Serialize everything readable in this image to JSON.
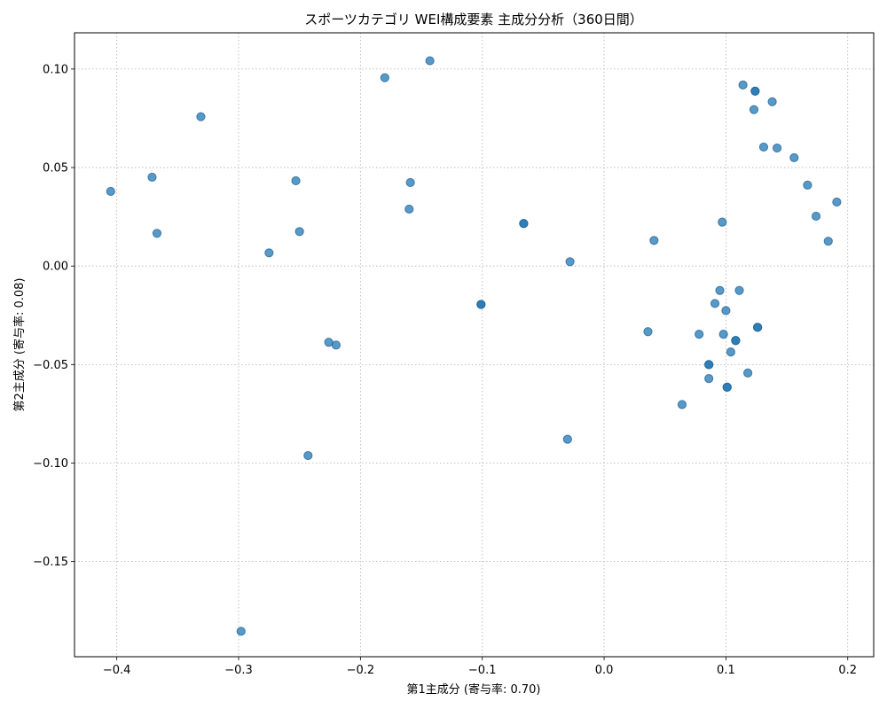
{
  "chart_data": {
    "type": "scatter",
    "title": "スポーツカテゴリ WEI構成要素 主成分分析（360日間）",
    "xlabel": "第1主成分 (寄与率: 0.70)",
    "ylabel": "第2主成分 (寄与率: 0.08)",
    "xlim": [
      -0.4347,
      0.2213
    ],
    "ylim": [
      -0.1983,
      0.1184
    ],
    "xticks": [
      -0.4,
      -0.3,
      -0.2,
      -0.1,
      0.0,
      0.1,
      0.2
    ],
    "xtick_labels": [
      "−0.4",
      "−0.3",
      "−0.2",
      "−0.1",
      "0.0",
      "0.1",
      "0.2"
    ],
    "yticks": [
      0.1,
      0.05,
      0.0,
      -0.05,
      -0.1,
      -0.15
    ],
    "ytick_labels": [
      "0.10",
      "0.05",
      "0.00",
      "−0.05",
      "−0.10",
      "−0.15"
    ],
    "grid": true,
    "marker_color": "#1f77b4",
    "marker_alpha": 0.75,
    "points": [
      {
        "x": -0.405,
        "y": 0.0379
      },
      {
        "x": -0.371,
        "y": 0.0451
      },
      {
        "x": -0.367,
        "y": 0.0166
      },
      {
        "x": -0.331,
        "y": 0.0758
      },
      {
        "x": -0.298,
        "y": -0.1854
      },
      {
        "x": -0.275,
        "y": 0.0067
      },
      {
        "x": -0.253,
        "y": 0.0433
      },
      {
        "x": -0.25,
        "y": 0.0175
      },
      {
        "x": -0.243,
        "y": -0.0962
      },
      {
        "x": -0.226,
        "y": -0.0387
      },
      {
        "x": -0.22,
        "y": -0.0401
      },
      {
        "x": -0.18,
        "y": 0.0956
      },
      {
        "x": -0.159,
        "y": 0.0424
      },
      {
        "x": -0.16,
        "y": 0.0289
      },
      {
        "x": -0.143,
        "y": 0.1042
      },
      {
        "x": -0.101,
        "y": -0.0195
      },
      {
        "x": -0.101,
        "y": -0.0195
      },
      {
        "x": -0.066,
        "y": 0.0216
      },
      {
        "x": -0.066,
        "y": 0.0216
      },
      {
        "x": -0.028,
        "y": 0.0022
      },
      {
        "x": -0.03,
        "y": -0.0879
      },
      {
        "x": 0.036,
        "y": -0.0333
      },
      {
        "x": 0.041,
        "y": 0.013
      },
      {
        "x": 0.064,
        "y": -0.0703
      },
      {
        "x": 0.078,
        "y": -0.0346
      },
      {
        "x": 0.086,
        "y": -0.05
      },
      {
        "x": 0.086,
        "y": -0.05
      },
      {
        "x": 0.086,
        "y": -0.0571
      },
      {
        "x": 0.091,
        "y": -0.019
      },
      {
        "x": 0.095,
        "y": -0.0124
      },
      {
        "x": 0.097,
        "y": 0.0223
      },
      {
        "x": 0.098,
        "y": -0.0346
      },
      {
        "x": 0.1,
        "y": -0.0226
      },
      {
        "x": 0.101,
        "y": -0.0615
      },
      {
        "x": 0.101,
        "y": -0.0615
      },
      {
        "x": 0.104,
        "y": -0.0436
      },
      {
        "x": 0.108,
        "y": -0.0378
      },
      {
        "x": 0.108,
        "y": -0.0378
      },
      {
        "x": 0.111,
        "y": -0.0124
      },
      {
        "x": 0.114,
        "y": 0.0919
      },
      {
        "x": 0.118,
        "y": -0.0543
      },
      {
        "x": 0.123,
        "y": 0.0794
      },
      {
        "x": 0.124,
        "y": 0.0888
      },
      {
        "x": 0.124,
        "y": 0.0888
      },
      {
        "x": 0.126,
        "y": -0.0311
      },
      {
        "x": 0.126,
        "y": -0.0311
      },
      {
        "x": 0.131,
        "y": 0.0604
      },
      {
        "x": 0.138,
        "y": 0.0834
      },
      {
        "x": 0.142,
        "y": 0.0599
      },
      {
        "x": 0.156,
        "y": 0.055
      },
      {
        "x": 0.167,
        "y": 0.0411
      },
      {
        "x": 0.174,
        "y": 0.0253
      },
      {
        "x": 0.184,
        "y": 0.0126
      },
      {
        "x": 0.191,
        "y": 0.0325
      }
    ]
  }
}
